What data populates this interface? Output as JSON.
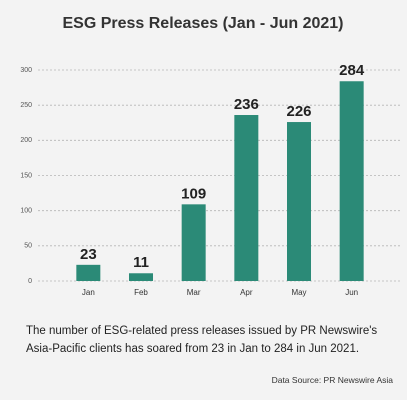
{
  "chart_data": {
    "type": "bar",
    "title": "ESG Press Releases (Jan - Jun 2021)",
    "categories": [
      "Jan",
      "Feb",
      "Mar",
      "Apr",
      "May",
      "Jun"
    ],
    "values": [
      23,
      11,
      109,
      236,
      226,
      284
    ],
    "color": "#2b8a77",
    "ylim": [
      0,
      300
    ],
    "yticks": [
      0,
      50,
      100,
      150,
      200,
      250,
      300
    ],
    "grid": true,
    "caption": "The number of ESG-related press releases issued by PR Newswire's Asia-Pacific clients has soared from 23 in Jan to 284 in Jun 2021.",
    "source": "Data Source: PR Newswire Asia"
  }
}
